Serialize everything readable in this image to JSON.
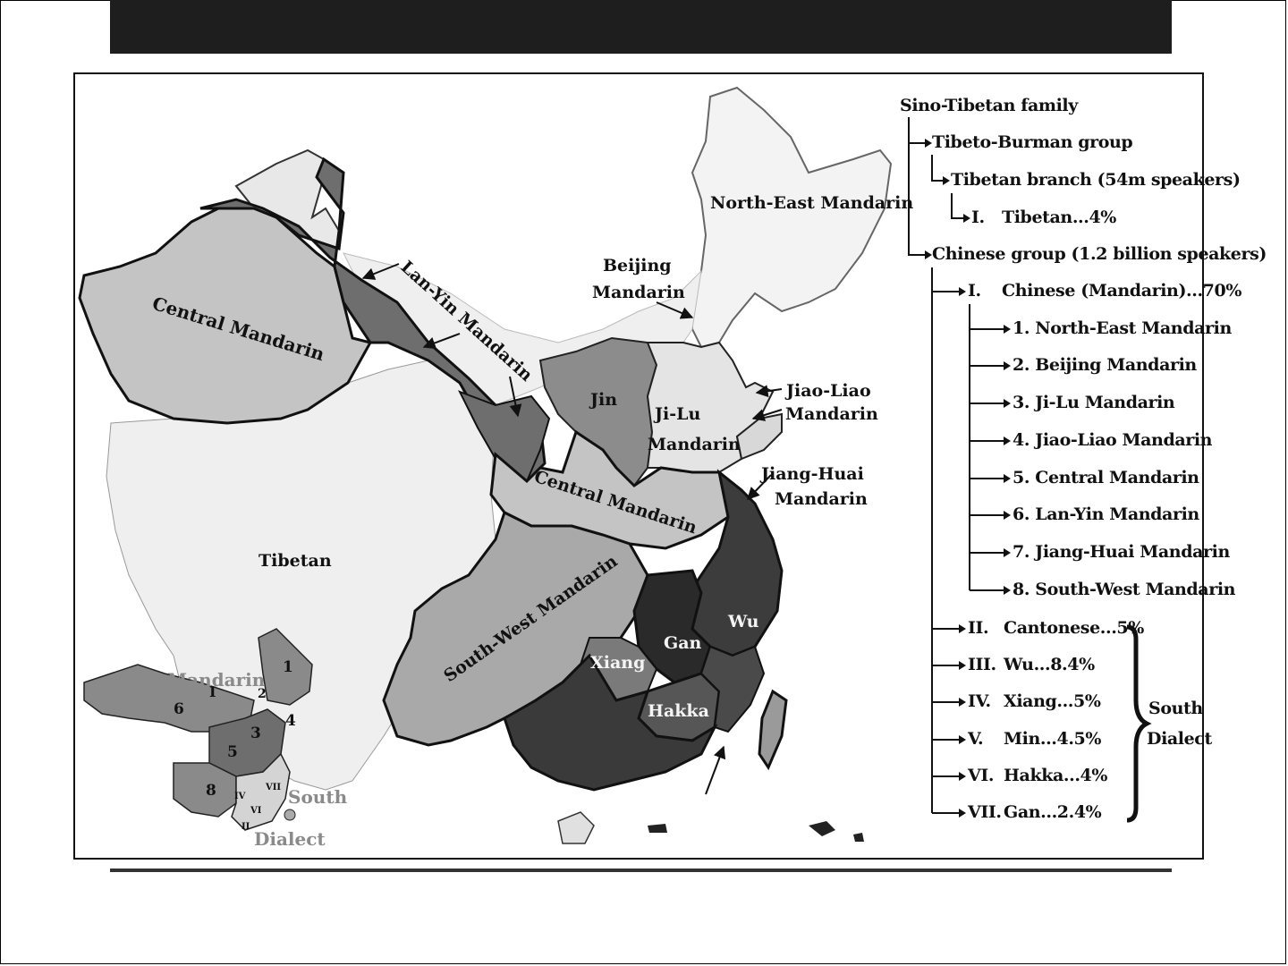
{
  "map": {
    "regions": {
      "north_east": "North-East Mandarin",
      "beijing_line1": "Beijing",
      "beijing_line2": "Mandarin",
      "lan_yin": "Lan-Yin Mandarin",
      "central_west": "Central Mandarin",
      "central_mid": "Central Mandarin",
      "jin": "Jin",
      "ji_lu_line1": "Ji-Lu",
      "ji_lu_line2": "Mandarin",
      "jiao_liao_line1": "Jiao-Liao",
      "jiao_liao_line2": "Mandarin",
      "jiang_huai_line1": "Jiang-Huai",
      "jiang_huai_line2": "Mandarin",
      "tibetan": "Tibetan",
      "south_west": "South-West Mandarin",
      "xiang": "Xiang",
      "gan": "Gan",
      "wu": "Wu",
      "hakka": "Hakka"
    },
    "inset": {
      "mandarin": "Mandarin",
      "roman_one": "I",
      "south": "South",
      "dialect": "Dialect",
      "n1": "1",
      "n2": "2",
      "n3": "3",
      "n4": "4",
      "n5": "5",
      "n6": "6",
      "n8": "8",
      "r4": "IV",
      "r6": "VI",
      "r7": "VII",
      "r2": "II"
    },
    "colors": {
      "tibetan": "#efefef",
      "lan_yin": "#6e6e6e",
      "central": "#c4c4c4",
      "jin": "#8c8c8c",
      "south_west": "#a9a9a9",
      "wu": "#3c3c3c",
      "gan": "#2a2a2a",
      "xiang": "#7a7a7a",
      "hakka": "#565656",
      "north_east": "#f3f3f3"
    }
  },
  "tree": {
    "root": "Sino-Tibetan family",
    "tibeto_burman": "Tibeto-Burman group",
    "tibetan_branch": "Tibetan branch (54m speakers)",
    "tibetan_num": "I.",
    "tibetan_item": "Tibetan...4%",
    "chinese_group": "Chinese group (1.2 billion speakers)",
    "mandarin_num": "I.",
    "mandarin_item": "Chinese (Mandarin)...70%",
    "mandarin_subs": [
      "1. North-East Mandarin",
      "2. Beijing Mandarin",
      "3. Ji-Lu Mandarin",
      "4. Jiao-Liao Mandarin",
      "5. Central Mandarin",
      "6. Lan-Yin Mandarin",
      "7. Jiang-Huai Mandarin",
      "8. South-West Mandarin"
    ],
    "dialects": [
      {
        "num": "II.",
        "label": "Cantonese...5%"
      },
      {
        "num": "III.",
        "label": "Wu...8.4%"
      },
      {
        "num": "IV.",
        "label": "Xiang...5%"
      },
      {
        "num": "V.",
        "label": "Min...4.5%"
      },
      {
        "num": "VI.",
        "label": "Hakka...4%"
      },
      {
        "num": "VII.",
        "label": "Gan...2.4%"
      }
    ],
    "south_line1": "South",
    "south_line2": "Dialect"
  }
}
